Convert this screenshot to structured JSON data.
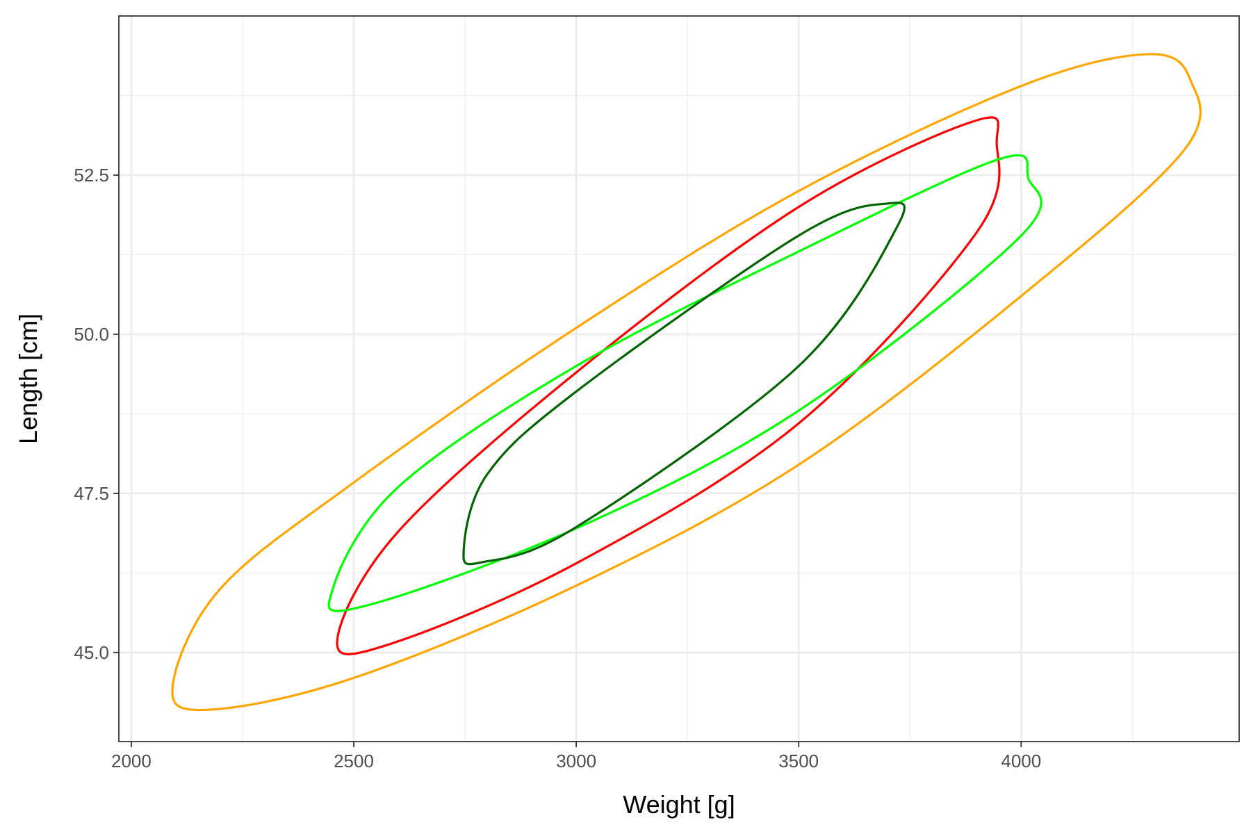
{
  "chart_data": {
    "type": "line",
    "title": "",
    "xlabel": "Weight [g]",
    "ylabel": "Length [cm]",
    "xlim": [
      1972,
      4490
    ],
    "ylim": [
      43.6,
      55.0
    ],
    "x_ticks": [
      2000,
      2500,
      3000,
      3500,
      4000
    ],
    "x_tick_labels": [
      "2000",
      "2500",
      "3000",
      "3500",
      "4000"
    ],
    "x_minor_ticks": [
      2250,
      2750,
      3250,
      3750,
      4250
    ],
    "y_ticks": [
      45.0,
      47.5,
      50.0,
      52.5
    ],
    "y_tick_labels": [
      "45.0",
      "47.5",
      "50.0",
      "52.5"
    ],
    "y_minor_ticks": [
      46.25,
      48.75,
      51.25,
      53.75
    ],
    "grid": true,
    "legend": "none",
    "series": [
      {
        "color": "#FFA500",
        "points": [
          [
            2093,
            44.47
          ],
          [
            2173,
            44.1
          ],
          [
            2500,
            44.6
          ],
          [
            3000,
            46.05
          ],
          [
            3500,
            47.95
          ],
          [
            4000,
            50.6
          ],
          [
            4367,
            52.9
          ],
          [
            4380,
            54.0
          ],
          [
            4285,
            54.4
          ],
          [
            4000,
            53.9
          ],
          [
            3500,
            52.25
          ],
          [
            3000,
            50.1
          ],
          [
            2500,
            47.67
          ],
          [
            2200,
            46.0
          ],
          [
            2093,
            44.47
          ]
        ]
      },
      {
        "color": "#FF0000",
        "points": [
          [
            2463,
            45.2
          ],
          [
            2576,
            45.12
          ],
          [
            3000,
            46.4
          ],
          [
            3500,
            48.6
          ],
          [
            3900,
            51.6
          ],
          [
            3945,
            53.0
          ],
          [
            3895,
            53.35
          ],
          [
            3500,
            52.0
          ],
          [
            3000,
            49.4
          ],
          [
            2600,
            46.9
          ],
          [
            2463,
            45.2
          ]
        ]
      },
      {
        "color": "#00FF00",
        "points": [
          [
            2453,
            46.0
          ],
          [
            2519,
            45.72
          ],
          [
            3000,
            46.95
          ],
          [
            3500,
            48.8
          ],
          [
            4000,
            51.55
          ],
          [
            4016,
            52.45
          ],
          [
            3950,
            52.75
          ],
          [
            3500,
            51.3
          ],
          [
            3000,
            49.5
          ],
          [
            2600,
            47.6
          ],
          [
            2453,
            46.0
          ]
        ]
      },
      {
        "color": "#006400",
        "points": [
          [
            2747,
            46.6
          ],
          [
            2790,
            46.42
          ],
          [
            3000,
            46.97
          ],
          [
            3500,
            49.5
          ],
          [
            3722,
            51.7
          ],
          [
            3695,
            52.05
          ],
          [
            3500,
            51.55
          ],
          [
            3000,
            49.1
          ],
          [
            2800,
            47.8
          ],
          [
            2747,
            46.6
          ]
        ]
      }
    ]
  }
}
